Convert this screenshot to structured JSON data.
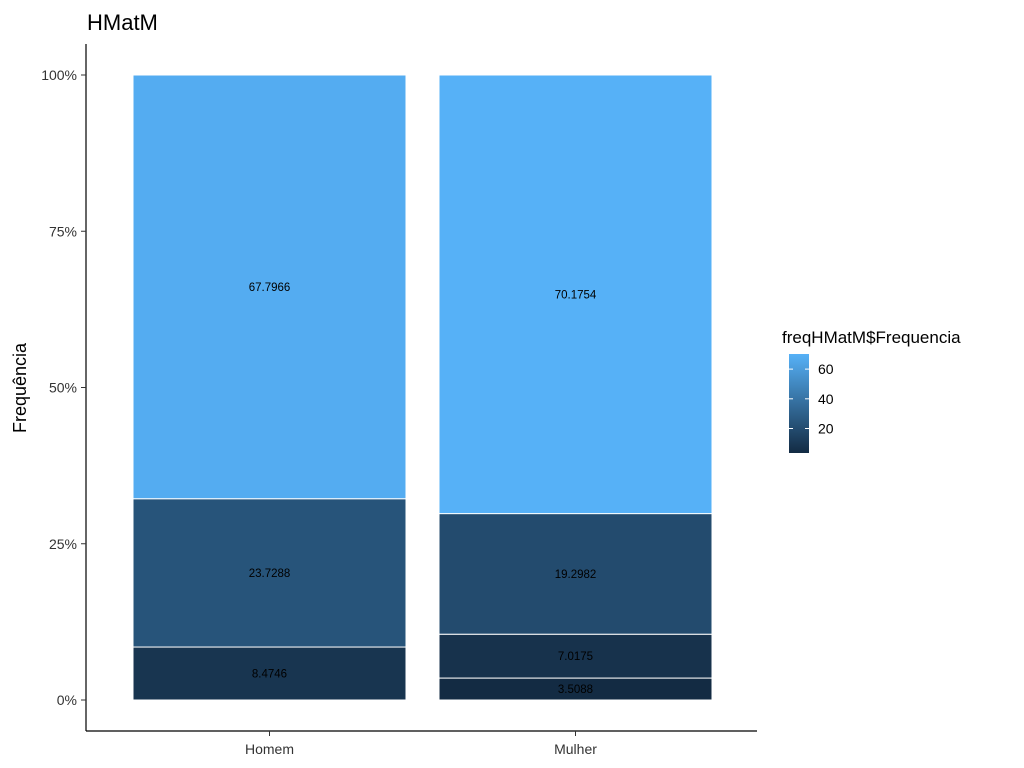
{
  "chart_data": {
    "type": "bar",
    "stacked": "percent",
    "title": "HMatM",
    "xlabel": "",
    "ylabel": "Frequência",
    "categories": [
      "Homem",
      "Mulher"
    ],
    "segments": [
      [
        8.4746,
        23.7288,
        67.7966
      ],
      [
        3.5088,
        7.0175,
        19.2982,
        70.1754
      ]
    ],
    "segment_labels": [
      [
        "8.4746",
        "23.7288",
        "67.7966"
      ],
      [
        "3.5088",
        "7.0175",
        "19.2982",
        "70.1754"
      ]
    ],
    "ylim": [
      0,
      1
    ],
    "yticks": [
      0,
      0.25,
      0.5,
      0.75,
      1
    ],
    "ytick_labels": [
      "0%",
      "25%",
      "50%",
      "75%",
      "100%"
    ],
    "grid": false,
    "legend": {
      "title": "freqHMatM$Frequencia",
      "placement": "right",
      "type": "colorbar",
      "range": [
        3.5088,
        70.1754
      ],
      "ticks": [
        20,
        40,
        60
      ],
      "tick_labels": [
        "20",
        "40",
        "60"
      ],
      "color_low": "#132B43",
      "color_high": "#56B1F7"
    }
  }
}
